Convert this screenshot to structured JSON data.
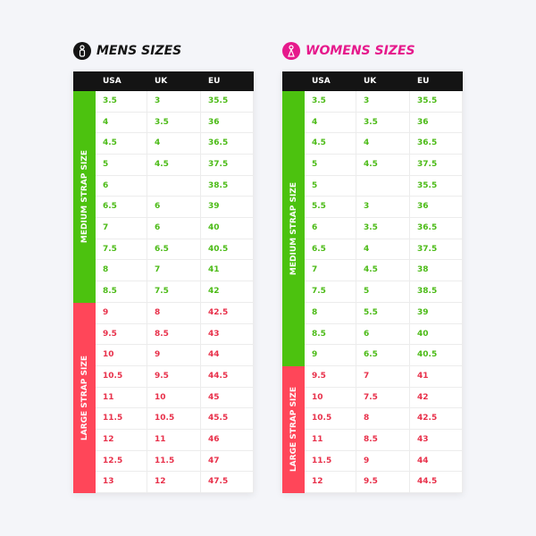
{
  "tables": [
    {
      "title": "MENS SIZES",
      "columns": [
        "USA",
        "UK",
        "EU"
      ],
      "groups": [
        {
          "label": "MEDIUM STRAP SIZE",
          "rows": [
            [
              "3.5",
              "3",
              "35.5"
            ],
            [
              "4",
              "3.5",
              "36"
            ],
            [
              "4.5",
              "4",
              "36.5"
            ],
            [
              "5",
              "4.5",
              "37.5"
            ],
            [
              "6",
              null,
              "38.5"
            ],
            [
              "6.5",
              "6",
              "39"
            ],
            [
              "7",
              "6",
              "40"
            ],
            [
              "7.5",
              "6.5",
              "40.5"
            ],
            [
              "8",
              "7",
              "41"
            ],
            [
              "8.5",
              "7.5",
              "42"
            ]
          ]
        },
        {
          "label": "LARGE STRAP SIZE",
          "rows": [
            [
              "9",
              "8",
              "42.5"
            ],
            [
              "9.5",
              "8.5",
              "43"
            ],
            [
              "10",
              "9",
              "44"
            ],
            [
              "10.5",
              "9.5",
              "44.5"
            ],
            [
              "11",
              "10",
              "45"
            ],
            [
              "11.5",
              "10.5",
              "45.5"
            ],
            [
              "12",
              "11",
              "46"
            ],
            [
              "12.5",
              "11.5",
              "47"
            ],
            [
              "13",
              "12",
              "47.5"
            ]
          ]
        }
      ]
    },
    {
      "title": "WOMENS SIZES",
      "columns": [
        "USA",
        "UK",
        "EU"
      ],
      "groups": [
        {
          "label": "MEDIUM STRAP SIZE",
          "rows": [
            [
              "3.5",
              "3",
              "35.5"
            ],
            [
              "4",
              "3.5",
              "36"
            ],
            [
              "4.5",
              "4",
              "36.5"
            ],
            [
              "5",
              "4.5",
              "37.5"
            ],
            [
              "5",
              null,
              "35.5"
            ],
            [
              "5.5",
              "3",
              "36"
            ],
            [
              "6",
              "3.5",
              "36.5"
            ],
            [
              "6.5",
              "4",
              "37.5"
            ],
            [
              "7",
              "4.5",
              "38"
            ],
            [
              "7.5",
              "5",
              "38.5"
            ],
            [
              "8",
              "5.5",
              "39"
            ],
            [
              "8.5",
              "6",
              "40"
            ],
            [
              "9",
              "6.5",
              "40.5"
            ]
          ]
        },
        {
          "label": "LARGE STRAP SIZE",
          "rows": [
            [
              "9.5",
              "7",
              "41"
            ],
            [
              "10",
              "7.5",
              "42"
            ],
            [
              "10.5",
              "8",
              "42.5"
            ],
            [
              "11",
              "8.5",
              "43"
            ],
            [
              "11.5",
              "9",
              "44"
            ],
            [
              "12",
              "9.5",
              "44.5"
            ]
          ]
        }
      ]
    }
  ]
}
